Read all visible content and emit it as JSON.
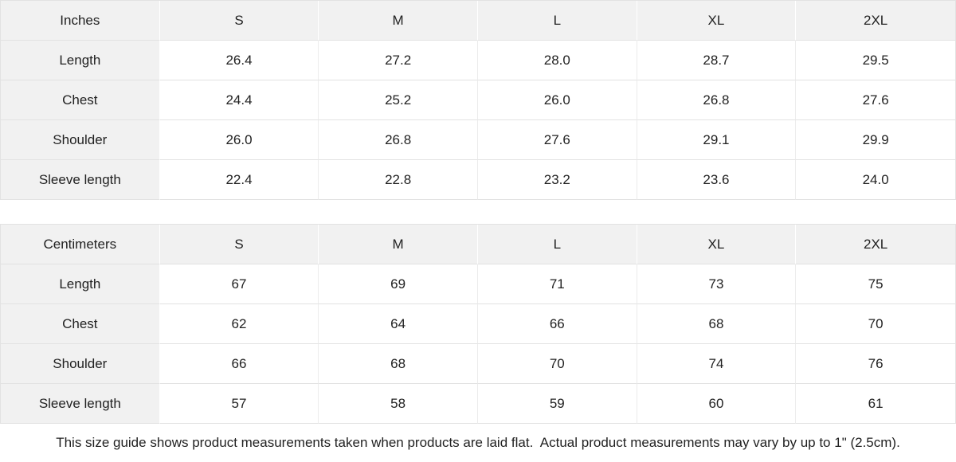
{
  "tables": [
    {
      "unit_label": "Inches",
      "sizes": [
        "S",
        "M",
        "L",
        "XL",
        "2XL"
      ],
      "rows": [
        {
          "label": "Length",
          "values": [
            "26.4",
            "27.2",
            "28.0",
            "28.7",
            "29.5"
          ]
        },
        {
          "label": "Chest",
          "values": [
            "24.4",
            "25.2",
            "26.0",
            "26.8",
            "27.6"
          ]
        },
        {
          "label": "Shoulder",
          "values": [
            "26.0",
            "26.8",
            "27.6",
            "29.1",
            "29.9"
          ]
        },
        {
          "label": "Sleeve length",
          "values": [
            "22.4",
            "22.8",
            "23.2",
            "23.6",
            "24.0"
          ]
        }
      ]
    },
    {
      "unit_label": "Centimeters",
      "sizes": [
        "S",
        "M",
        "L",
        "XL",
        "2XL"
      ],
      "rows": [
        {
          "label": "Length",
          "values": [
            "67",
            "69",
            "71",
            "73",
            "75"
          ]
        },
        {
          "label": "Chest",
          "values": [
            "62",
            "64",
            "66",
            "68",
            "70"
          ]
        },
        {
          "label": "Shoulder",
          "values": [
            "66",
            "68",
            "70",
            "74",
            "76"
          ]
        },
        {
          "label": "Sleeve length",
          "values": [
            "57",
            "58",
            "59",
            "60",
            "61"
          ]
        }
      ]
    }
  ],
  "footer_note": "This size guide shows product measurements taken when products are laid flat.  Actual product measurements may vary by up to 1\" (2.5cm).",
  "colors": {
    "header_cell_bg": "#f1f1f1",
    "row_border": "#e2e2e2",
    "column_border": "#ececec",
    "text": "#222222"
  }
}
